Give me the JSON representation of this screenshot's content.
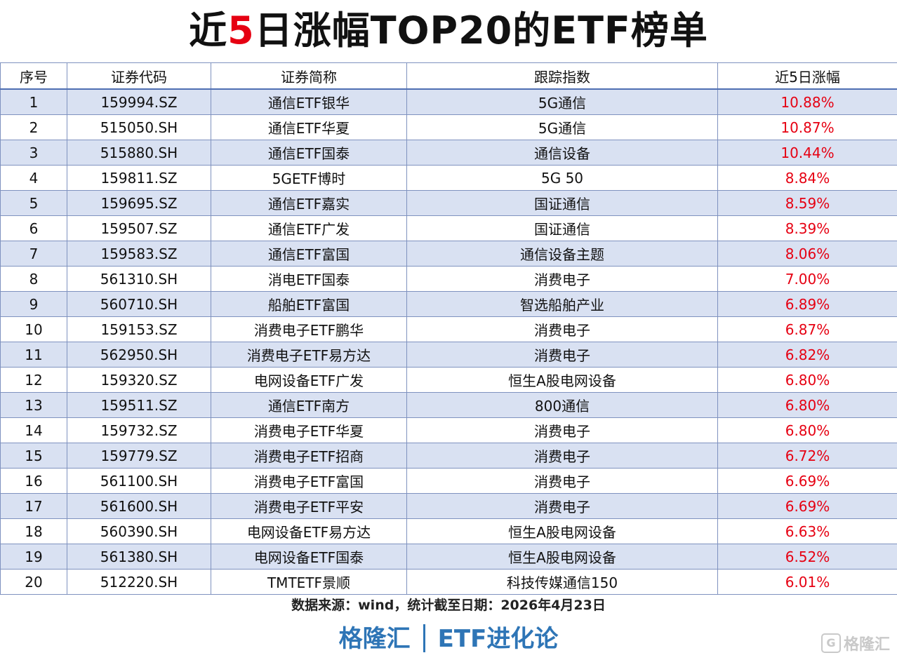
{
  "title": {
    "pre": "近",
    "highlight": "5",
    "post": "日涨幅TOP20的ETF榜单"
  },
  "table": {
    "headers": [
      "序号",
      "证券代码",
      "证券简称",
      "跟踪指数",
      "近5日涨幅"
    ],
    "rows": [
      [
        "1",
        "159994.SZ",
        "通信ETF银华",
        "5G通信",
        "10.88%"
      ],
      [
        "2",
        "515050.SH",
        "通信ETF华夏",
        "5G通信",
        "10.87%"
      ],
      [
        "3",
        "515880.SH",
        "通信ETF国泰",
        "通信设备",
        "10.44%"
      ],
      [
        "4",
        "159811.SZ",
        "5GETF博时",
        "5G 50",
        "8.84%"
      ],
      [
        "5",
        "159695.SZ",
        "通信ETF嘉实",
        "国证通信",
        "8.59%"
      ],
      [
        "6",
        "159507.SZ",
        "通信ETF广发",
        "国证通信",
        "8.39%"
      ],
      [
        "7",
        "159583.SZ",
        "通信ETF富国",
        "通信设备主题",
        "8.06%"
      ],
      [
        "8",
        "561310.SH",
        "消电ETF国泰",
        "消费电子",
        "7.00%"
      ],
      [
        "9",
        "560710.SH",
        "船舶ETF富国",
        "智选船舶产业",
        "6.89%"
      ],
      [
        "10",
        "159153.SZ",
        "消费电子ETF鹏华",
        "消费电子",
        "6.87%"
      ],
      [
        "11",
        "562950.SH",
        "消费电子ETF易方达",
        "消费电子",
        "6.82%"
      ],
      [
        "12",
        "159320.SZ",
        "电网设备ETF广发",
        "恒生A股电网设备",
        "6.80%"
      ],
      [
        "13",
        "159511.SZ",
        "通信ETF南方",
        "800通信",
        "6.80%"
      ],
      [
        "14",
        "159732.SZ",
        "消费电子ETF华夏",
        "消费电子",
        "6.80%"
      ],
      [
        "15",
        "159779.SZ",
        "消费电子ETF招商",
        "消费电子",
        "6.72%"
      ],
      [
        "16",
        "561100.SH",
        "消费电子ETF富国",
        "消费电子",
        "6.69%"
      ],
      [
        "17",
        "561600.SH",
        "消费电子ETF平安",
        "消费电子",
        "6.69%"
      ],
      [
        "18",
        "560390.SH",
        "电网设备ETF易方达",
        "恒生A股电网设备",
        "6.63%"
      ],
      [
        "19",
        "561380.SH",
        "电网设备ETF国泰",
        "恒生A股电网设备",
        "6.52%"
      ],
      [
        "20",
        "512220.SH",
        "TMTETF景顺",
        "科技传媒通信150",
        "6.01%"
      ]
    ]
  },
  "source": "数据来源：wind，统计截至日期：2026年4月23日",
  "brand": {
    "left": "格隆汇",
    "right": "ETF进化论"
  },
  "watermark": {
    "icon": "G",
    "text": "格隆汇"
  },
  "colors": {
    "accent_red": "#e60012",
    "brand_blue": "#2e75b6",
    "row_stripe": "#d9e1f2"
  }
}
